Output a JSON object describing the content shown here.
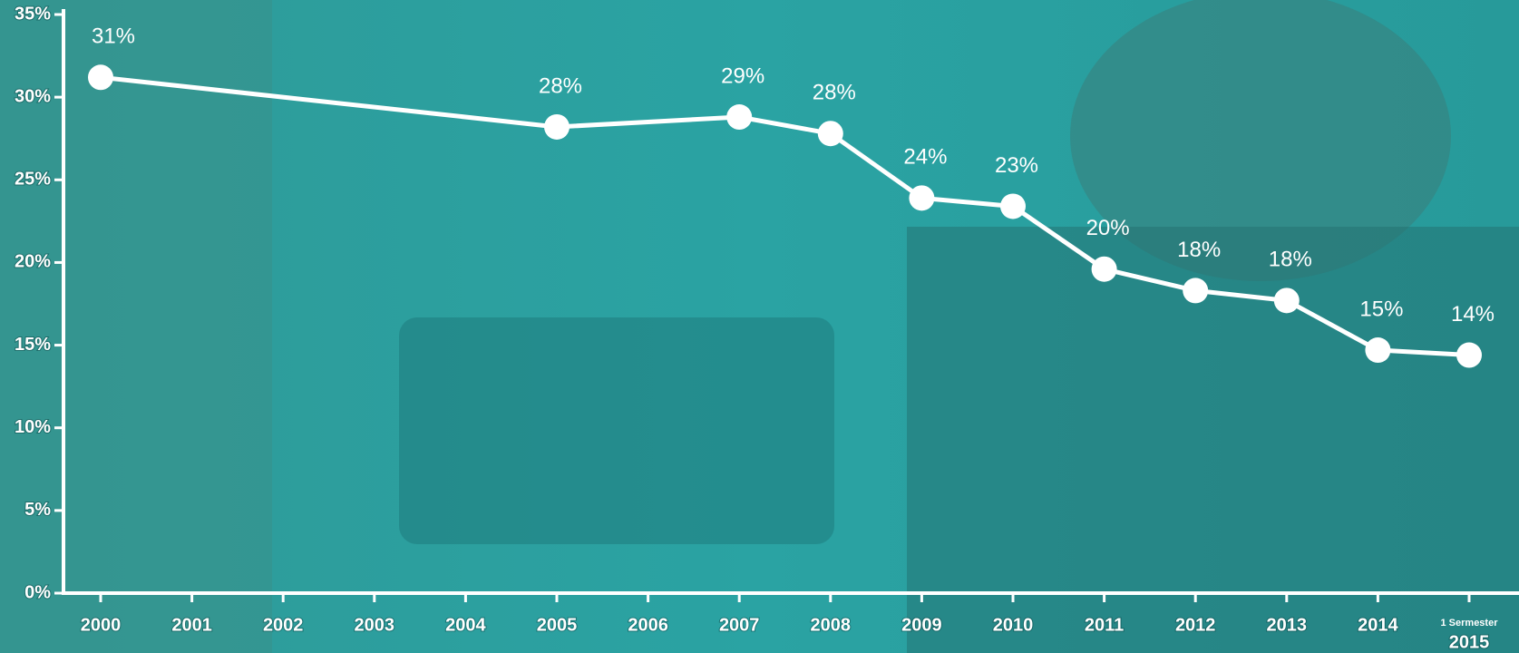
{
  "chart_data": {
    "type": "line",
    "x": [
      2000,
      2005,
      2007,
      2008,
      2009,
      2010,
      2011,
      2012,
      2013,
      2014,
      2015
    ],
    "values": [
      31.2,
      28.2,
      28.8,
      27.8,
      23.9,
      23.4,
      19.6,
      18.3,
      17.7,
      14.7,
      14.4
    ],
    "value_labels": [
      "31%",
      "28%",
      "29%",
      "28%",
      "24%",
      "23%",
      "20%",
      "18%",
      "18%",
      "15%",
      "14%"
    ],
    "color": "#ffffff",
    "xlim": [
      2000,
      2015
    ],
    "xticks": [
      2000,
      2001,
      2002,
      2003,
      2004,
      2005,
      2006,
      2007,
      2008,
      2009,
      2010,
      2011,
      2012,
      2013,
      2014,
      2015
    ],
    "xtick_note": "1 Sermester",
    "ylim": [
      0,
      35
    ],
    "yticks": [
      {
        "value": 0,
        "label": "0%"
      },
      {
        "value": 5,
        "label": "5%"
      },
      {
        "value": 10,
        "label": "10%"
      },
      {
        "value": 15,
        "label": "15%"
      },
      {
        "value": 20,
        "label": "20%"
      },
      {
        "value": 25,
        "label": "25%"
      },
      {
        "value": 30,
        "label": "30%"
      },
      {
        "value": 35,
        "label": "35%"
      }
    ]
  }
}
